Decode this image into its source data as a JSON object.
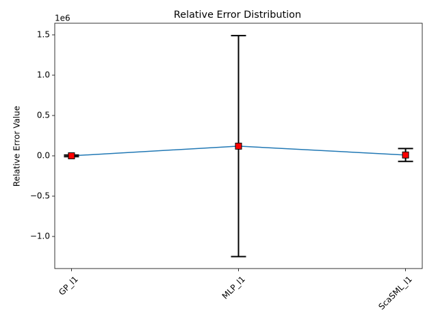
{
  "chart_data": {
    "type": "errorbar",
    "title": "Relative Error Distribution",
    "y_label": "Relative Error Value",
    "y_offset_text": "1e6",
    "categories": [
      "GP_l1",
      "MLP_l1",
      "ScaSML_l1"
    ],
    "values": [
      0.0,
      0.12,
      0.01
    ],
    "errors": [
      0.01,
      1.37,
      0.08
    ],
    "line_color": "#1f77b4",
    "marker_color": "#ff0000",
    "error_color": "#000000",
    "ylim": [
      -1.398,
      1.644
    ],
    "yticks": [
      {
        "value": -1.0,
        "label": "−1.0"
      },
      {
        "value": -0.5,
        "label": "−0.5"
      },
      {
        "value": 0,
        "label": "0.0"
      },
      0.5,
      {
        "value": 1.0,
        "label": "1.0"
      },
      1.5
    ]
  }
}
